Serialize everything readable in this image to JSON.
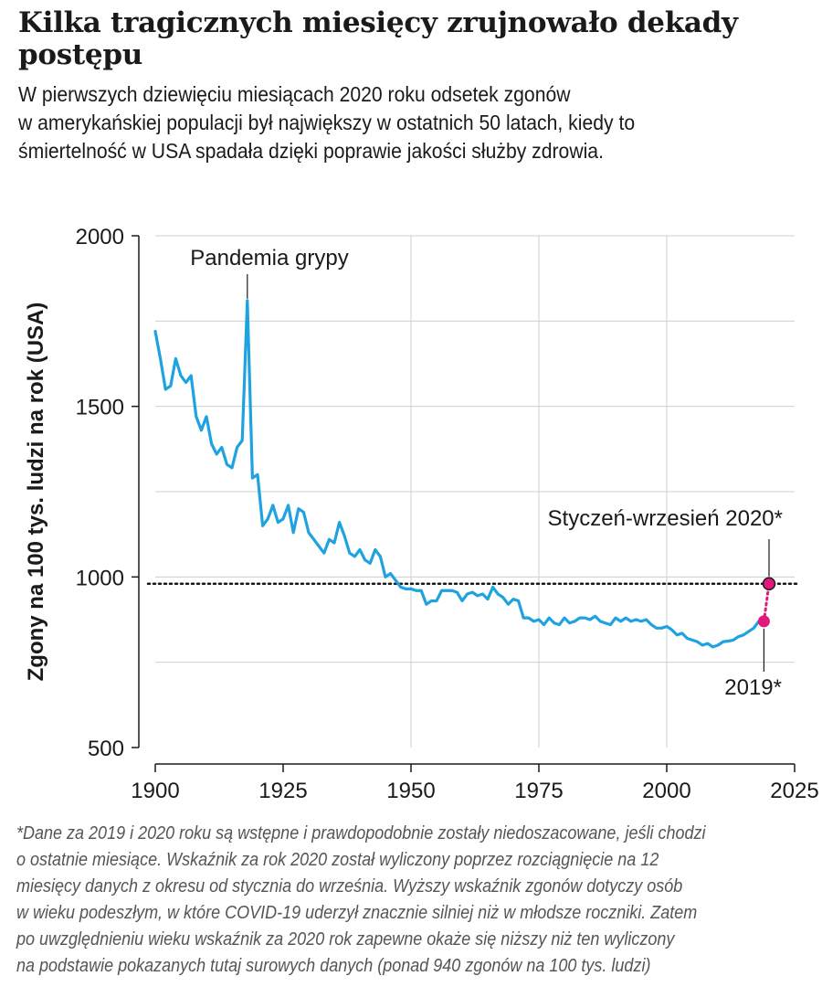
{
  "header": {
    "title": "Kilka tragicznych miesięcy zrujnowało dekady postępu",
    "subtitle": "W pierwszych dziewięciu miesiącach 2020 roku odsetek zgonów\nw amerykańskiej populacji był największy w ostatnich 50 latach, kiedy to\nśmiertelność w USA spadała dzięki poprawie jakości służby zdrowia."
  },
  "footnote": "*Dane za 2019 i 2020 roku są wstępne i prawdopodobnie zostały niedoszacowane, jeśli chodzi\n o ostatnie miesiące. Wskaźnik za rok 2020 został wyliczony poprzez rozciągnięcie na 12\n miesięcy danych z okresu od stycznia do września. Wyższy wskaźnik zgonów dotyczy osób\n w wieku podeszłym, w które COVID-19 uderzył znacznie silniej niż w młodsze roczniki. Zatem\n po uwzględnieniu wieku wskaźnik za 2020 rok zapewne okaże się niższy niż ten wyliczony\n na podstawie pokazanych tutaj surowych danych (ponad 940 zgonów na 100 tys. ludzi)",
  "chart_data": {
    "type": "line",
    "title": "Kilka tragicznych miesięcy zrujnowało dekady postępu",
    "xlabel": "",
    "ylabel": "Zgony na 100 tys. ludzi na rok (USA)",
    "xlim": [
      1900,
      2025
    ],
    "ylim": [
      500,
      2000
    ],
    "xticks": [
      1900,
      1925,
      1950,
      1975,
      2000,
      2025
    ],
    "yticks": [
      500,
      1000,
      1500,
      2000
    ],
    "grid_y": [
      750,
      1250,
      1750
    ],
    "grid_x": [
      1950,
      1975,
      2000
    ],
    "grid": true,
    "series": [
      {
        "name": "Zgony na 100 tys. ludzi (USA)",
        "color": "#1fa3e0",
        "x": [
          1900,
          1901,
          1902,
          1903,
          1904,
          1905,
          1906,
          1907,
          1908,
          1909,
          1910,
          1911,
          1912,
          1913,
          1914,
          1915,
          1916,
          1917,
          1918,
          1919,
          1920,
          1921,
          1922,
          1923,
          1924,
          1925,
          1926,
          1927,
          1928,
          1929,
          1930,
          1931,
          1932,
          1933,
          1934,
          1935,
          1936,
          1937,
          1938,
          1939,
          1940,
          1941,
          1942,
          1943,
          1944,
          1945,
          1946,
          1947,
          1948,
          1949,
          1950,
          1951,
          1952,
          1953,
          1954,
          1955,
          1956,
          1957,
          1958,
          1959,
          1960,
          1961,
          1962,
          1963,
          1964,
          1965,
          1966,
          1967,
          1968,
          1969,
          1970,
          1971,
          1972,
          1973,
          1974,
          1975,
          1976,
          1977,
          1978,
          1979,
          1980,
          1981,
          1982,
          1983,
          1984,
          1985,
          1986,
          1987,
          1988,
          1989,
          1990,
          1991,
          1992,
          1993,
          1994,
          1995,
          1996,
          1997,
          1998,
          1999,
          2000,
          2001,
          2002,
          2003,
          2004,
          2005,
          2006,
          2007,
          2008,
          2009,
          2010,
          2011,
          2012,
          2013,
          2014,
          2015,
          2016,
          2017,
          2018,
          2019
        ],
        "values": [
          1720,
          1640,
          1550,
          1560,
          1640,
          1590,
          1570,
          1590,
          1470,
          1430,
          1470,
          1390,
          1360,
          1380,
          1330,
          1320,
          1380,
          1400,
          1810,
          1290,
          1300,
          1150,
          1170,
          1210,
          1160,
          1170,
          1210,
          1130,
          1200,
          1190,
          1130,
          1110,
          1090,
          1070,
          1110,
          1100,
          1160,
          1120,
          1070,
          1060,
          1080,
          1050,
          1040,
          1080,
          1060,
          1000,
          1010,
          990,
          970,
          965,
          965,
          960,
          960,
          920,
          930,
          930,
          960,
          960,
          960,
          955,
          930,
          950,
          955,
          945,
          950,
          935,
          970,
          950,
          940,
          920,
          935,
          930,
          880,
          880,
          870,
          875,
          860,
          880,
          865,
          860,
          880,
          865,
          870,
          880,
          880,
          875,
          885,
          870,
          865,
          860,
          880,
          870,
          880,
          870,
          875,
          870,
          875,
          860,
          850,
          850,
          855,
          845,
          830,
          835,
          820,
          815,
          810,
          800,
          805,
          795,
          800,
          810,
          812,
          815,
          825,
          830,
          840,
          850,
          870,
          870
        ]
      }
    ],
    "points": [
      {
        "label": "2019*",
        "x": 2019,
        "y": 870,
        "color": "#e0197a"
      },
      {
        "label": "Styczeń-wrzesień 2020*",
        "x": 2020,
        "y": 980,
        "color": "#e0197a"
      }
    ],
    "reference_line": {
      "y": 980,
      "style": "dotted",
      "color": "#1a1a1a"
    },
    "annotations": [
      {
        "text": "Pandemia grypy",
        "x": 1918,
        "y": 1810
      },
      {
        "text": "Styczeń-wrzesień 2020*",
        "x": 2020,
        "y": 980
      },
      {
        "text": "2019*",
        "x": 2019,
        "y": 870
      }
    ]
  }
}
